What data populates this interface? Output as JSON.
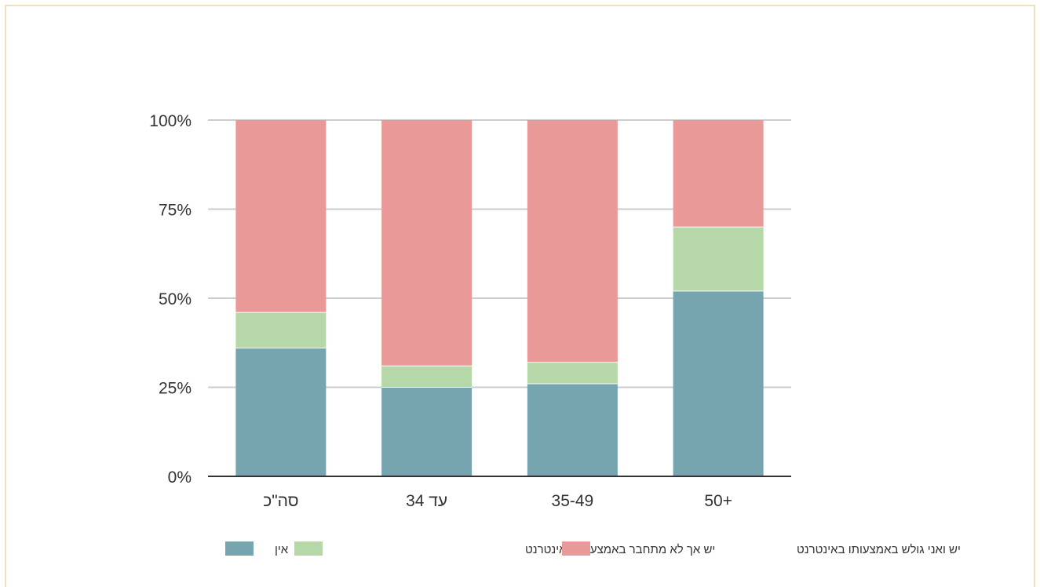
{
  "chart_data": {
    "type": "bar",
    "stacked": true,
    "categories": [
      "סה\"כ",
      "עד 34",
      "35-49",
      "50+"
    ],
    "series": [
      {
        "name": "אין",
        "color": "#76a5af",
        "values": [
          36,
          25,
          26,
          52
        ]
      },
      {
        "name": "יש אך לא מתחבר באמצעותו לאינטרנט",
        "color": "#b6d7a8",
        "values": [
          10,
          6,
          6,
          18
        ]
      },
      {
        "name": "יש ואני גולש באמצעותו באינטרנט",
        "color": "#ea9999",
        "values": [
          54,
          69,
          68,
          30
        ]
      }
    ],
    "yticks": [
      "0%",
      "25%",
      "50%",
      "75%",
      "100%"
    ],
    "ylim": [
      0,
      100
    ],
    "grid": true,
    "legend_position": "bottom"
  }
}
